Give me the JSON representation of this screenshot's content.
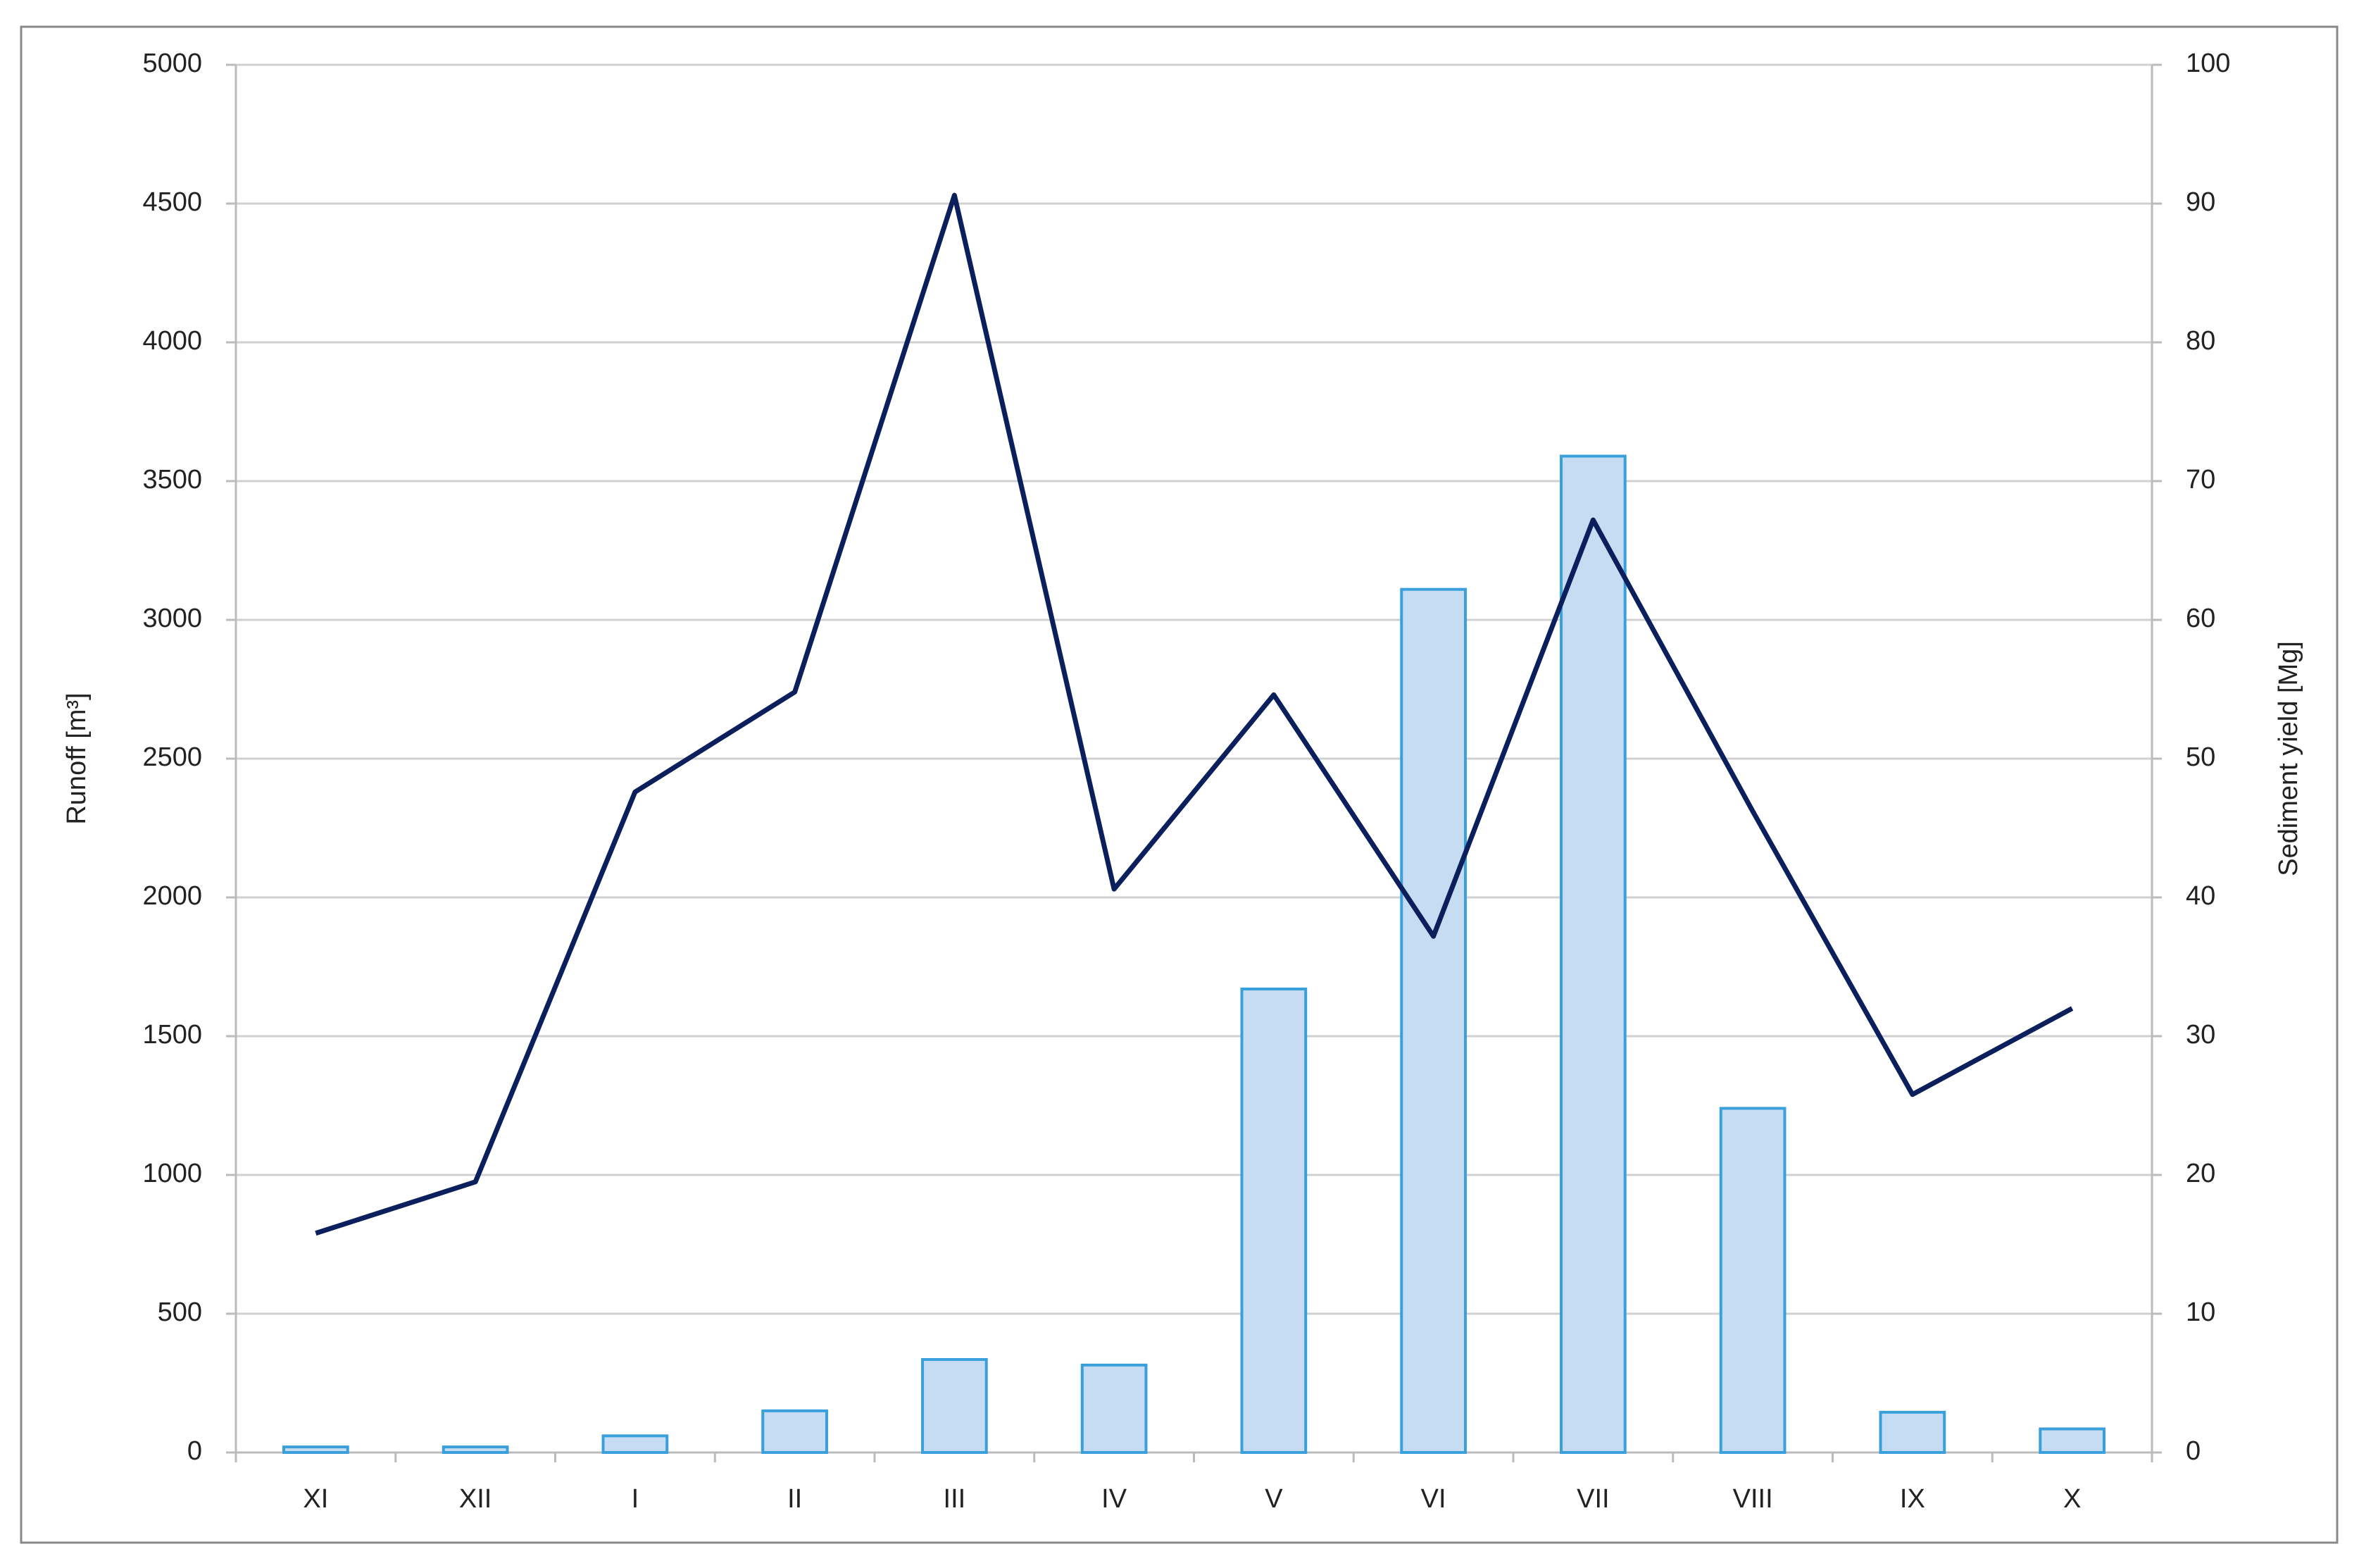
{
  "chart_data": {
    "type": "bar_line",
    "categories": [
      "XI",
      "XII",
      "I",
      "II",
      "III",
      "IV",
      "V",
      "VI",
      "VII",
      "VIII",
      "IX",
      "X"
    ],
    "y_label": "Runoff [m³]",
    "y2_label": "Sediment yield [Mg]",
    "series": [
      {
        "type": "bar",
        "color": "#c5dcf2",
        "edge_color": "#3aa0dc",
        "values": [
          20,
          20,
          60,
          150,
          335,
          315,
          1670,
          3110,
          3590,
          1240,
          145,
          85
        ]
      },
      {
        "type": "line",
        "axis": "y2",
        "color": "#0a1f5c",
        "values": [
          15.8,
          19.5,
          47.6,
          54.8,
          90.6,
          40.6,
          54.6,
          37.2,
          67.2,
          46.2,
          25.8,
          32
        ]
      }
    ],
    "ylim": [
      0,
      5000
    ],
    "yticks": [
      0,
      500,
      1000,
      1500,
      2000,
      2500,
      3000,
      3500,
      4000,
      4500,
      5000
    ],
    "y2lim": [
      0,
      100
    ],
    "y2ticks": [
      0,
      10,
      20,
      30,
      40,
      50,
      60,
      70,
      80,
      90,
      100
    ],
    "grid": true
  }
}
